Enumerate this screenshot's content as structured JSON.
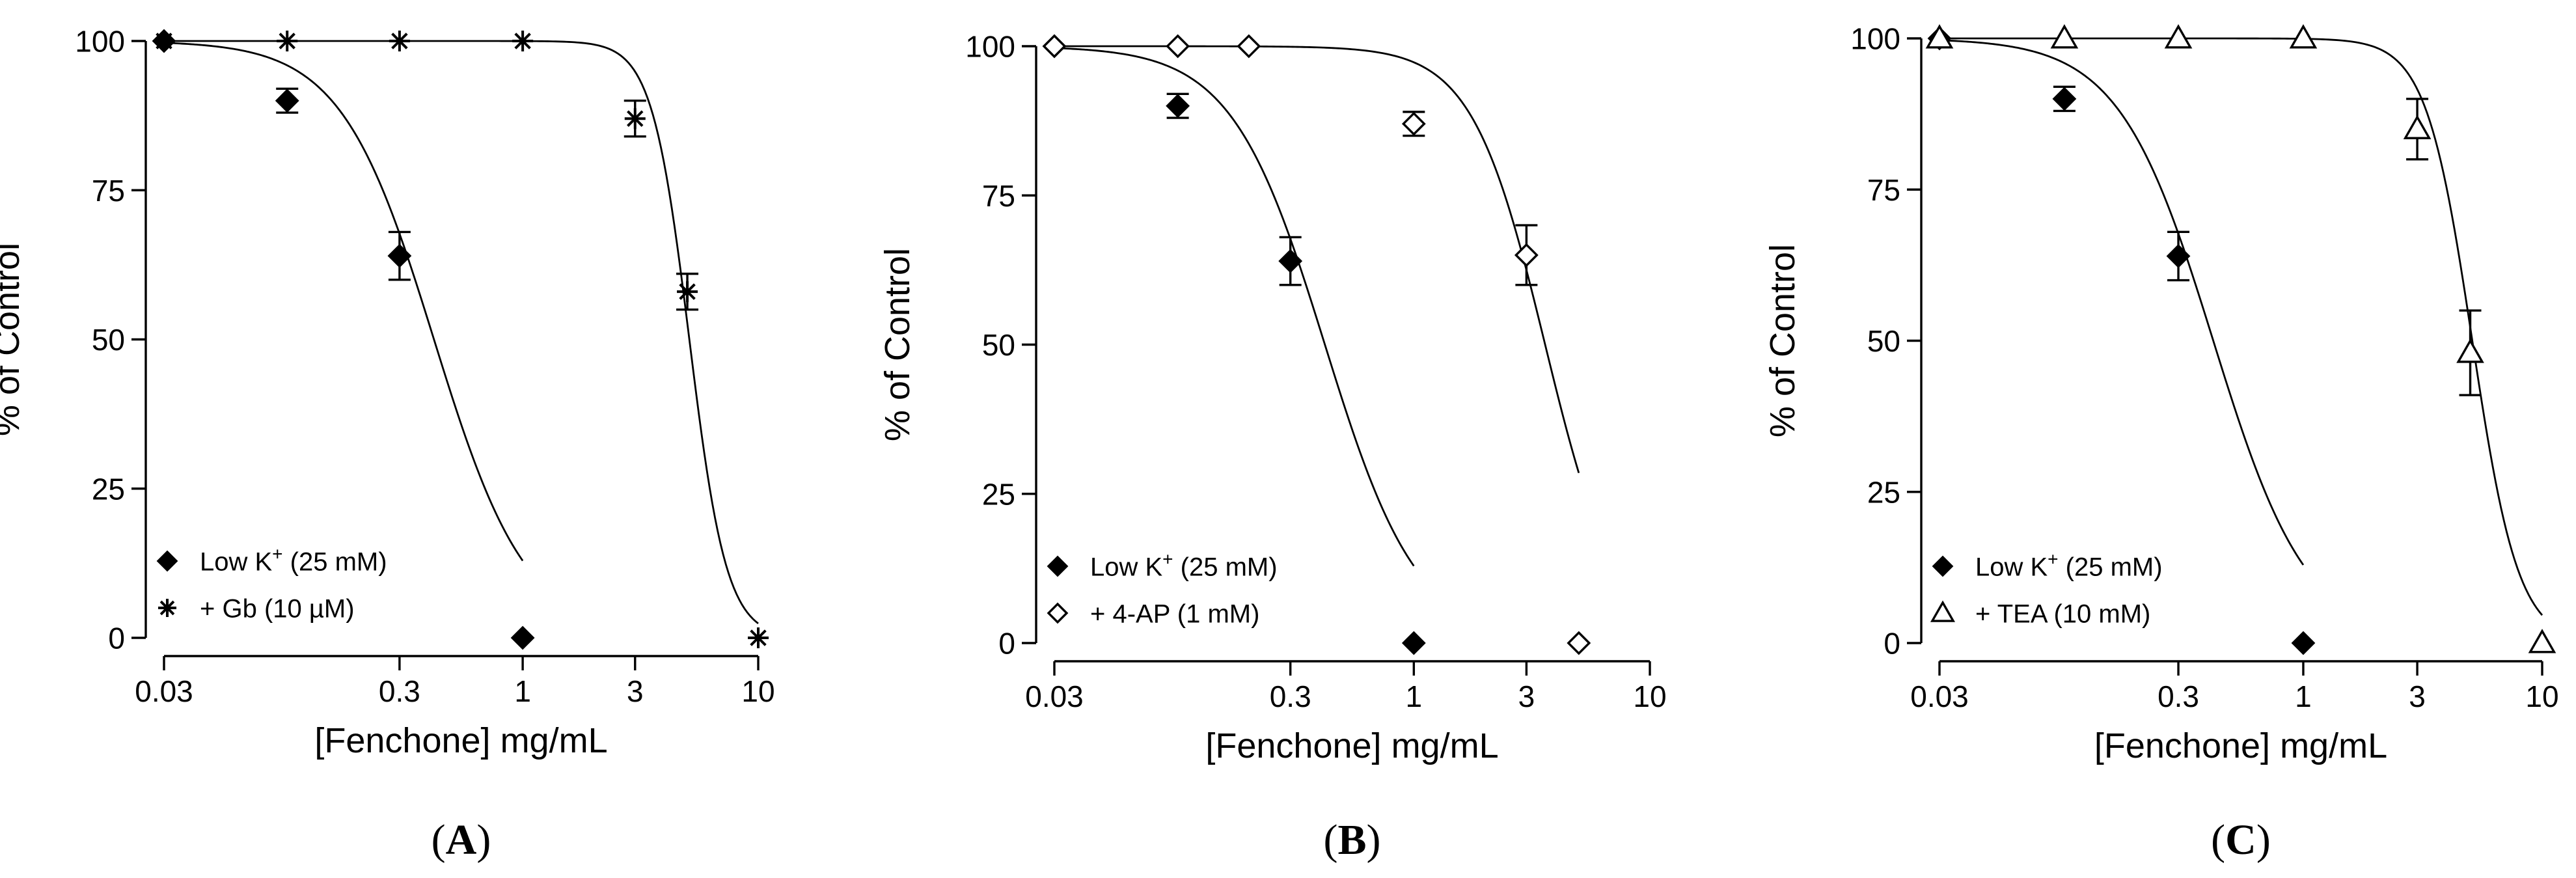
{
  "chart_data": [
    {
      "type": "line",
      "panel_label": "A",
      "xlabel": "[Fenchone] mg/mL",
      "ylabel": "% of Control",
      "x_scale": "log",
      "xlim": [
        0.03,
        10
      ],
      "ylim": [
        0,
        100
      ],
      "x_ticks": [
        0.03,
        0.3,
        1,
        3,
        10
      ],
      "x_tick_labels": [
        "0.03",
        "0.3",
        "1",
        "3",
        "10"
      ],
      "y_ticks": [
        0,
        25,
        50,
        75,
        100
      ],
      "y_tick_labels": [
        "0",
        "25",
        "50",
        "75",
        "100"
      ],
      "legend_position": "bottom-left",
      "series": [
        {
          "name": "Low K+ (25 mM)",
          "legend_main": "Low  K",
          "legend_sup": "+",
          "legend_tail": " (25 mM)",
          "marker": "filled-diamond",
          "x": [
            0.03,
            0.1,
            0.3,
            1
          ],
          "y": [
            100,
            90,
            64,
            0
          ],
          "err": [
            0,
            2,
            4,
            0
          ],
          "fit": {
            "ic50": 0.42,
            "hill": 2.2
          }
        },
        {
          "name": "+ Gb (10 µM)",
          "legend_main": "+ Gb (10 µM)",
          "legend_sup": "",
          "legend_tail": "",
          "marker": "asterisk",
          "x": [
            0.03,
            0.1,
            0.3,
            1,
            3,
            5,
            10
          ],
          "y": [
            100,
            100,
            100,
            100,
            87,
            58,
            0
          ],
          "err": [
            0,
            0,
            0,
            0,
            3,
            3,
            0
          ],
          "fit": {
            "ic50": 5.1,
            "hill": 5.5
          }
        }
      ]
    },
    {
      "type": "line",
      "panel_label": "B",
      "xlabel": "[Fenchone] mg/mL",
      "ylabel": "% of Control",
      "x_scale": "log",
      "xlim": [
        0.03,
        10
      ],
      "ylim": [
        0,
        100
      ],
      "x_ticks": [
        0.03,
        0.3,
        1,
        3,
        10
      ],
      "x_tick_labels": [
        "0.03",
        "0.3",
        "1",
        "3",
        "10"
      ],
      "y_ticks": [
        0,
        25,
        50,
        75,
        100
      ],
      "y_tick_labels": [
        "0",
        "25",
        "50",
        "75",
        "100"
      ],
      "legend_position": "bottom-left",
      "series": [
        {
          "name": "Low K+ (25 mM)",
          "legend_main": "Low  K",
          "legend_sup": "+",
          "legend_tail": " (25 mM)",
          "marker": "filled-diamond",
          "x": [
            0.03,
            0.1,
            0.3,
            1
          ],
          "y": [
            100,
            90,
            64,
            0
          ],
          "err": [
            0,
            2,
            4,
            0
          ],
          "fit": {
            "ic50": 0.42,
            "hill": 2.2
          }
        },
        {
          "name": "+ 4-AP (1 mM)",
          "legend_main": "+ 4-AP (1 mM)",
          "legend_sup": "",
          "legend_tail": "",
          "marker": "open-diamond",
          "x": [
            0.03,
            0.1,
            0.2,
            1,
            3,
            5
          ],
          "y": [
            100,
            100,
            100,
            87,
            65,
            0
          ],
          "err": [
            0,
            0,
            0,
            2,
            5,
            0
          ],
          "fit": {
            "ic50": 3.6,
            "hill": 2.8
          }
        }
      ]
    },
    {
      "type": "line",
      "panel_label": "C",
      "xlabel": "[Fenchone] mg/mL",
      "ylabel": "% of Control",
      "x_scale": "log",
      "xlim": [
        0.03,
        10
      ],
      "ylim": [
        0,
        100
      ],
      "x_ticks": [
        0.03,
        0.3,
        1,
        3,
        10
      ],
      "x_tick_labels": [
        "0.03",
        "0.3",
        "1",
        "3",
        "10"
      ],
      "y_ticks": [
        0,
        25,
        50,
        75,
        100
      ],
      "y_tick_labels": [
        "0",
        "25",
        "50",
        "75",
        "100"
      ],
      "legend_position": "bottom-left",
      "series": [
        {
          "name": "Low K+ (25 mM)",
          "legend_main": "Low  K",
          "legend_sup": "+",
          "legend_tail": " (25 mM)",
          "marker": "filled-diamond",
          "x": [
            0.03,
            0.1,
            0.3,
            1
          ],
          "y": [
            100,
            90,
            64,
            0
          ],
          "err": [
            0,
            2,
            4,
            0
          ],
          "fit": {
            "ic50": 0.42,
            "hill": 2.2
          }
        },
        {
          "name": "+ TEA (10 mM)",
          "legend_main": "+ TEA (10 mM)",
          "legend_sup": "",
          "legend_tail": "",
          "marker": "open-triangle",
          "x": [
            0.03,
            0.1,
            0.3,
            1,
            3,
            5,
            10
          ],
          "y": [
            100,
            100,
            100,
            100,
            85,
            48,
            0
          ],
          "err": [
            0,
            0,
            0,
            0,
            5,
            7,
            0
          ],
          "fit": {
            "ic50": 5.1,
            "hill": 4.5
          }
        }
      ]
    }
  ]
}
